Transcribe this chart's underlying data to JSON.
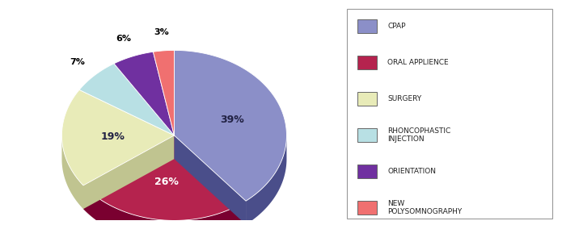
{
  "labels": [
    "CPAP",
    "ORAL APPLIENCE",
    "SURGERY",
    "RHONCOPHASTIC\nINJECTION",
    "ORIENTATION",
    "NEW\nPOLYSOMNOGRAPHY"
  ],
  "values": [
    39,
    26,
    19,
    7,
    6,
    3
  ],
  "colors": [
    "#8b8fc8",
    "#b5234e",
    "#e8ebb8",
    "#b8e0e4",
    "#7030a0",
    "#f07070"
  ],
  "dark_colors": [
    "#4a4e8a",
    "#7a0030",
    "#c0c490",
    "#78b0b8",
    "#4a0070",
    "#c04040"
  ],
  "pct_labels": [
    "39%",
    "26%",
    "19%",
    "7%",
    "6%",
    "3%"
  ],
  "startangle": 90,
  "figsize": [
    6.95,
    2.79
  ],
  "dpi": 100,
  "legend_labels": [
    "CPAP",
    "ORAL APPLIENCE",
    "SURGERY",
    "RHONCOPHASTIC\nINJECTION",
    "ORIENTATION",
    "NEW\nPOLYSOMNOGRAPHY"
  ]
}
